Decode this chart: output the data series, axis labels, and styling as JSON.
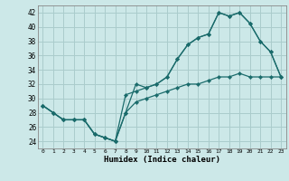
{
  "xlabel": "Humidex (Indice chaleur)",
  "background_color": "#cce8e8",
  "grid_color": "#aacccc",
  "line_color": "#1a6b6b",
  "xlim": [
    -0.5,
    23.5
  ],
  "ylim": [
    23,
    43
  ],
  "yticks": [
    24,
    26,
    28,
    30,
    32,
    34,
    36,
    38,
    40,
    42
  ],
  "xticks": [
    0,
    1,
    2,
    3,
    4,
    5,
    6,
    7,
    8,
    9,
    10,
    11,
    12,
    13,
    14,
    15,
    16,
    17,
    18,
    19,
    20,
    21,
    22,
    23
  ],
  "line1_x": [
    0,
    1,
    2,
    3,
    4,
    5,
    6,
    7,
    8,
    9,
    10,
    11,
    12,
    13,
    14,
    15,
    16,
    17,
    18,
    19,
    20,
    21,
    22,
    23
  ],
  "line1_y": [
    29,
    28,
    27,
    27,
    27,
    25,
    24.5,
    24,
    28,
    32,
    31.5,
    32,
    33,
    35.5,
    37.5,
    38.5,
    39,
    42,
    41.5,
    42,
    40.5,
    38,
    36.5,
    33
  ],
  "line2_x": [
    0,
    1,
    2,
    3,
    4,
    5,
    6,
    7,
    8,
    9,
    10,
    11,
    12,
    13,
    14,
    15,
    16,
    17,
    18,
    19,
    20,
    21,
    22,
    23
  ],
  "line2_y": [
    29,
    28,
    27,
    27,
    27,
    25,
    24.5,
    24,
    30.5,
    31,
    31.5,
    32,
    33,
    35.5,
    37.5,
    38.5,
    39,
    42,
    41.5,
    42,
    40.5,
    38,
    36.5,
    33
  ],
  "line3_x": [
    0,
    1,
    2,
    3,
    4,
    5,
    6,
    7,
    8,
    9,
    10,
    11,
    12,
    13,
    14,
    15,
    16,
    17,
    18,
    19,
    20,
    21,
    22,
    23
  ],
  "line3_y": [
    29,
    28,
    27,
    27,
    27,
    25,
    24.5,
    24,
    28,
    29.5,
    30,
    30.5,
    31,
    31.5,
    32,
    32,
    32.5,
    33,
    33,
    33.5,
    33,
    33,
    33,
    33
  ]
}
